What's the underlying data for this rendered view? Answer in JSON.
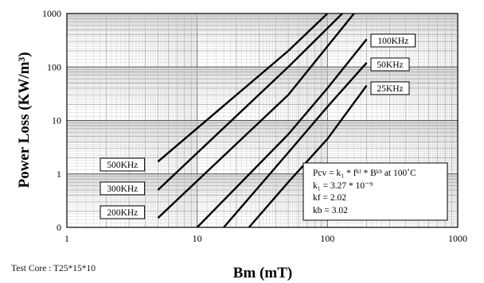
{
  "chart_data": {
    "type": "line",
    "xlabel": "Bm (mT)",
    "ylabel": "Power Loss (KW/m³)",
    "x_scale": "log",
    "y_scale": "log",
    "xlim": [
      1,
      1000
    ],
    "ylim": [
      0,
      1000
    ],
    "x_ticks": [
      "1",
      "10",
      "100",
      "1000"
    ],
    "y_ticks": [
      "1000",
      "100",
      "10",
      "1",
      "0"
    ],
    "grid": true,
    "series": [
      {
        "name": "500KHz",
        "x": [
          5,
          50,
          100
        ],
        "y": [
          1.7,
          200,
          1000
        ]
      },
      {
        "name": "300KHz",
        "x": [
          5,
          50,
          130
        ],
        "y": [
          0.5,
          100,
          1000
        ]
      },
      {
        "name": "200KHz",
        "x": [
          5,
          50,
          160
        ],
        "y": [
          0.15,
          30,
          1000
        ]
      },
      {
        "name": "100KHz",
        "x": [
          10,
          50,
          100,
          200
        ],
        "y": [
          0.1,
          5.5,
          40,
          330
        ]
      },
      {
        "name": "50KHz",
        "x": [
          16,
          50,
          100,
          200
        ],
        "y": [
          0.1,
          2.5,
          18,
          120
        ]
      },
      {
        "name": "25KHz",
        "x": [
          25,
          50,
          100,
          200
        ],
        "y": [
          0.1,
          0.7,
          4.5,
          45
        ]
      }
    ],
    "formula_box": {
      "lines": [
        "Pcv = k₁ * fᵏᶠ * Bᵏᵇ at 100˚C",
        "k₁    = 3.27 * 10⁻⁹",
        "kf    = 2.02",
        "kb    = 3.02"
      ]
    },
    "footnote": "Test Core : T25*15*10"
  }
}
